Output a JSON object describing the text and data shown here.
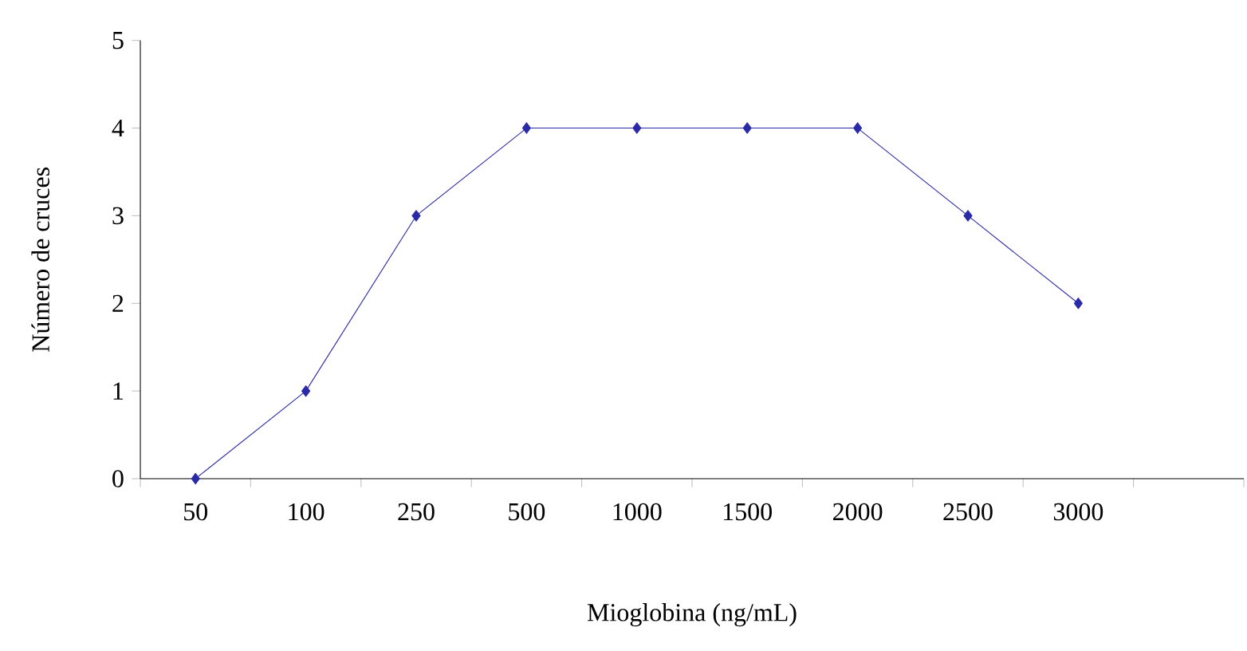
{
  "chart_data": {
    "type": "line",
    "xlabel": "Mioglobina (ng/mL)",
    "ylabel": "Número de cruces",
    "categories": [
      "50",
      "100",
      "250",
      "500",
      "1000",
      "1500",
      "2000",
      "2500",
      "3000"
    ],
    "values": [
      0,
      1,
      3,
      4,
      4,
      4,
      4,
      3,
      2
    ],
    "color": "#2a2aa8",
    "marker": "diamond",
    "line_style": "solid",
    "ylim": [
      0,
      5
    ],
    "yticks": [
      0,
      1,
      2,
      3,
      4,
      5
    ],
    "grid": false
  }
}
